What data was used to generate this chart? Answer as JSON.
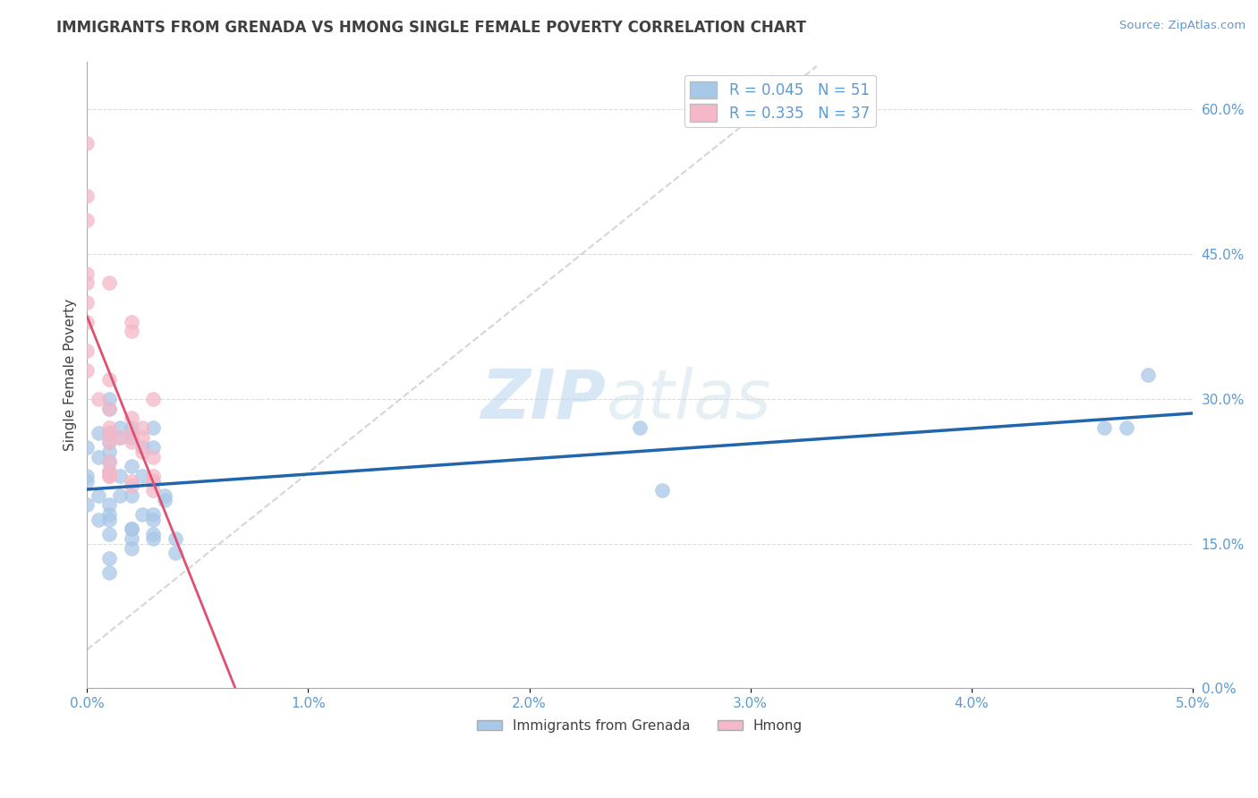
{
  "title": "IMMIGRANTS FROM GRENADA VS HMONG SINGLE FEMALE POVERTY CORRELATION CHART",
  "source": "Source: ZipAtlas.com",
  "ylabel": "Single Female Poverty",
  "legend_label1": "Immigrants from Grenada",
  "legend_label2": "Hmong",
  "R1": 0.045,
  "N1": 51,
  "R2": 0.335,
  "N2": 37,
  "color1": "#a8c8e8",
  "color2": "#f4b8c8",
  "line_color1": "#2166ac",
  "line_color2": "#e05070",
  "xlim": [
    0.0,
    0.05
  ],
  "ylim": [
    0.0,
    0.65
  ],
  "xticks": [
    0.0,
    0.01,
    0.02,
    0.03,
    0.04,
    0.05
  ],
  "xticklabels": [
    "0.0%",
    "1.0%",
    "2.0%",
    "3.0%",
    "4.0%",
    "5.0%"
  ],
  "yticks": [
    0.0,
    0.15,
    0.3,
    0.45,
    0.6
  ],
  "yticklabels": [
    "0.0%",
    "15.0%",
    "30.0%",
    "45.0%",
    "60.0%"
  ],
  "scatter1_x": [
    0.0,
    0.0,
    0.0005,
    0.0005,
    0.001,
    0.001,
    0.001,
    0.001,
    0.001,
    0.0015,
    0.0015,
    0.0015,
    0.002,
    0.002,
    0.002,
    0.002,
    0.0025,
    0.0025,
    0.003,
    0.003,
    0.003,
    0.003,
    0.003,
    0.0035,
    0.0035,
    0.004,
    0.004,
    0.001,
    0.001,
    0.0015,
    0.002,
    0.0025,
    0.001,
    0.001,
    0.001,
    0.002,
    0.002,
    0.0,
    0.0005,
    0.001,
    0.001,
    0.002,
    0.003,
    0.025,
    0.026,
    0.046,
    0.047,
    0.048,
    0.0,
    0.0005,
    0.001
  ],
  "scatter1_y": [
    0.25,
    0.22,
    0.265,
    0.24,
    0.265,
    0.255,
    0.245,
    0.235,
    0.225,
    0.26,
    0.22,
    0.2,
    0.26,
    0.23,
    0.2,
    0.165,
    0.22,
    0.18,
    0.25,
    0.27,
    0.18,
    0.175,
    0.16,
    0.2,
    0.195,
    0.155,
    0.14,
    0.3,
    0.29,
    0.27,
    0.27,
    0.25,
    0.19,
    0.175,
    0.16,
    0.165,
    0.145,
    0.215,
    0.2,
    0.18,
    0.12,
    0.155,
    0.155,
    0.27,
    0.205,
    0.27,
    0.27,
    0.325,
    0.19,
    0.175,
    0.135
  ],
  "scatter2_x": [
    0.0,
    0.0,
    0.0,
    0.0,
    0.0,
    0.0,
    0.0,
    0.0,
    0.0005,
    0.001,
    0.001,
    0.001,
    0.001,
    0.001,
    0.0015,
    0.002,
    0.002,
    0.002,
    0.002,
    0.0025,
    0.0025,
    0.003,
    0.003,
    0.003,
    0.001,
    0.001,
    0.001,
    0.001,
    0.002,
    0.003,
    0.003,
    0.0,
    0.001,
    0.002,
    0.002,
    0.003,
    0.0025
  ],
  "scatter2_y": [
    0.565,
    0.51,
    0.485,
    0.43,
    0.4,
    0.38,
    0.35,
    0.33,
    0.3,
    0.32,
    0.27,
    0.265,
    0.255,
    0.22,
    0.26,
    0.28,
    0.265,
    0.255,
    0.215,
    0.26,
    0.245,
    0.24,
    0.215,
    0.205,
    0.29,
    0.235,
    0.225,
    0.22,
    0.21,
    0.22,
    0.215,
    0.42,
    0.42,
    0.38,
    0.37,
    0.3,
    0.27
  ],
  "diag_line_x": [
    0.0,
    0.033
  ],
  "diag_line_y": [
    0.04,
    0.645
  ],
  "watermark_zip": "ZIP",
  "watermark_atlas": "atlas",
  "background_color": "#ffffff",
  "grid_color": "#cccccc",
  "axis_label_color": "#5b9bd5",
  "title_color": "#404040"
}
